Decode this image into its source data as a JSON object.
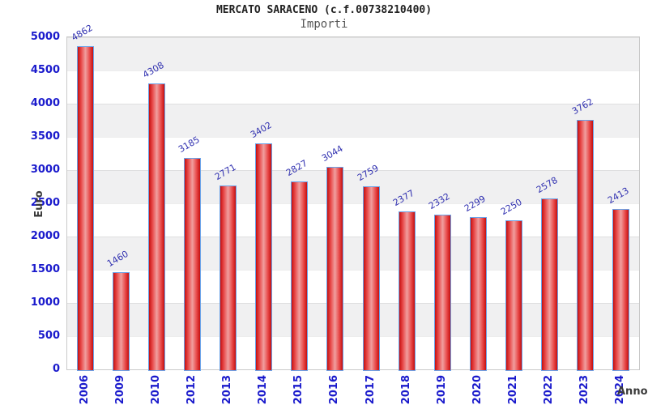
{
  "header": {
    "title": "MERCATO SARACENO (c.f.00738210400)",
    "subtitle": "Importi"
  },
  "axes": {
    "ylabel": "Euro",
    "xlabel": "Anno"
  },
  "chart_data": {
    "type": "bar",
    "title": "MERCATO SARACENO (c.f.00738210400)",
    "subtitle": "Importi",
    "categories": [
      "2006",
      "2009",
      "2010",
      "2012",
      "2013",
      "2014",
      "2015",
      "2016",
      "2017",
      "2018",
      "2019",
      "2020",
      "2021",
      "2022",
      "2023",
      "2024"
    ],
    "values": [
      4862,
      1460,
      4308,
      3185,
      2771,
      3402,
      2827,
      3044,
      2759,
      2377,
      2332,
      2299,
      2250,
      2578,
      3762,
      2413
    ],
    "xlabel": "Anno",
    "ylabel": "Euro",
    "ylim": [
      0,
      5000
    ],
    "yticks": [
      0,
      500,
      1000,
      1500,
      2000,
      2500,
      3000,
      3500,
      4000,
      4500,
      5000
    ],
    "legend": "none",
    "grid": "alternating horizontal bands every 500 units, gray band at top",
    "bar_value_label_rotation_deg": -30,
    "x_tick_rotation_deg": -90,
    "colors": {
      "bar_edge": "#c41010",
      "bar_center": "#f09f9f",
      "bar_border": "#6aa2e8",
      "tick_label": "#1a1acc",
      "value_label": "#3030b0",
      "axis_title": "#3a3a3a",
      "band_gray": "#f0f0f1",
      "band_white": "#ffffff",
      "plot_border": "#c9c9c9",
      "title_text": "#222222",
      "subtitle_text": "#555555"
    }
  }
}
